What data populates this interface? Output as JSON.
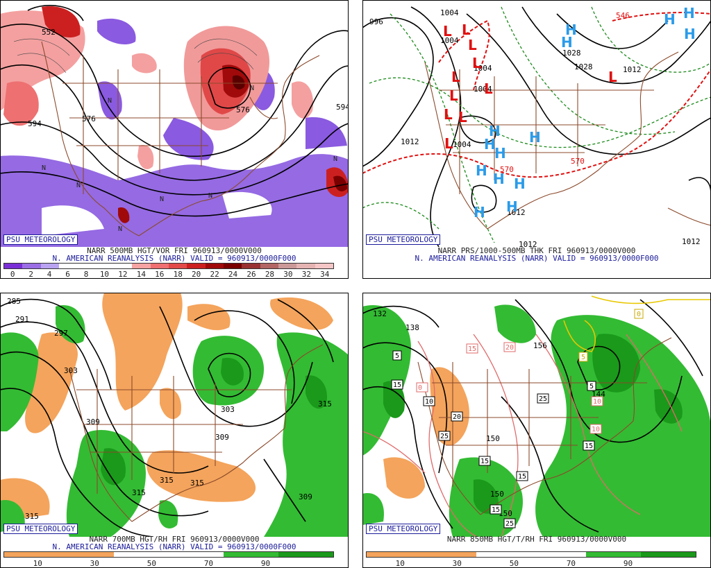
{
  "panels": [
    {
      "id": "vor500",
      "badge": "PSU METEOROLOGY",
      "title1": "NARR 500MB HGT/VOR FRI 960913/0000V000",
      "title2": "N. AMERICAN REANALYSIS (NARR) VALID = 960913/0000F000",
      "colorbar": {
        "colors": [
          "#7a2fd6",
          "#9b6ee6",
          "#b9a3f0",
          "#ffffff",
          "#ffffff",
          "#ffffff",
          "#ffffff",
          "#f7a3a3",
          "#ee7070",
          "#e24a4a",
          "#cc2020",
          "#a00a0a",
          "#7a0000",
          "#993333",
          "#b36666",
          "#cc9999",
          "#e6b3b3",
          "#f5c6c6"
        ],
        "labels": [
          "0",
          "2",
          "4",
          "6",
          "8",
          "10",
          "12",
          "14",
          "16",
          "18",
          "20",
          "22",
          "24",
          "26",
          "28",
          "30",
          "32",
          "34"
        ]
      },
      "contour_labels": [
        "552",
        "576",
        "594",
        "594",
        "576"
      ],
      "markers": [
        "N",
        "N",
        "N",
        "N",
        "N",
        "N",
        "N",
        "N"
      ]
    },
    {
      "id": "prs",
      "badge": "PSU METEOROLOGY",
      "title1": "NARR PRS/1000-500MB THK FRI 960913/0000V000",
      "title2": "N. AMERICAN REANALYSIS (NARR) VALID = 960913/0000F000",
      "contour_labels": [
        "996",
        "1004",
        "1004",
        "1004",
        "1004",
        "1028",
        "1028",
        "1012",
        "1012",
        "1012",
        "1004",
        "570",
        "570",
        "546",
        "1012",
        "1012"
      ],
      "markers": [
        "L",
        "L",
        "L",
        "L",
        "L",
        "L",
        "L",
        "L",
        "L",
        "L",
        "L",
        "H",
        "H",
        "H",
        "H",
        "H",
        "H",
        "H",
        "H",
        "H",
        "H",
        "H",
        "H",
        "H",
        "H"
      ]
    },
    {
      "id": "rh700",
      "badge": "PSU METEOROLOGY",
      "title1": "NARR 700MB HGT/RH FRI 960913/0000V000",
      "title2": "N. AMERICAN REANALYSIS (NARR) VALID = 960913/0000F000",
      "colorbar": {
        "colors": [
          "#f4a45c",
          "#f4a45c",
          "#ffffff",
          "#ffffff",
          "#33bb33",
          "#1a991a"
        ],
        "labels": [
          "10",
          "30",
          "50",
          "70",
          "90"
        ]
      },
      "contour_labels": [
        "285",
        "291",
        "297",
        "303",
        "309",
        "303",
        "309",
        "315",
        "315",
        "315",
        "315",
        "315",
        "309"
      ]
    },
    {
      "id": "t850",
      "badge": "PSU METEOROLOGY",
      "title1": "NARR 850MB HGT/T/RH FRI 960913/0000V000",
      "colorbar": {
        "colors": [
          "#f4a45c",
          "#f4a45c",
          "#ffffff",
          "#ffffff",
          "#33bb33",
          "#1a991a"
        ],
        "labels": [
          "10",
          "30",
          "50",
          "70",
          "90"
        ]
      },
      "contour_labels": [
        "132",
        "138",
        "156",
        "144",
        "150",
        "150",
        "150",
        "5",
        "5",
        "5",
        "0",
        "0",
        "10",
        "10",
        "15",
        "15",
        "15",
        "15",
        "20",
        "20",
        "25",
        "25",
        "15",
        "25",
        "10",
        "15"
      ]
    }
  ]
}
